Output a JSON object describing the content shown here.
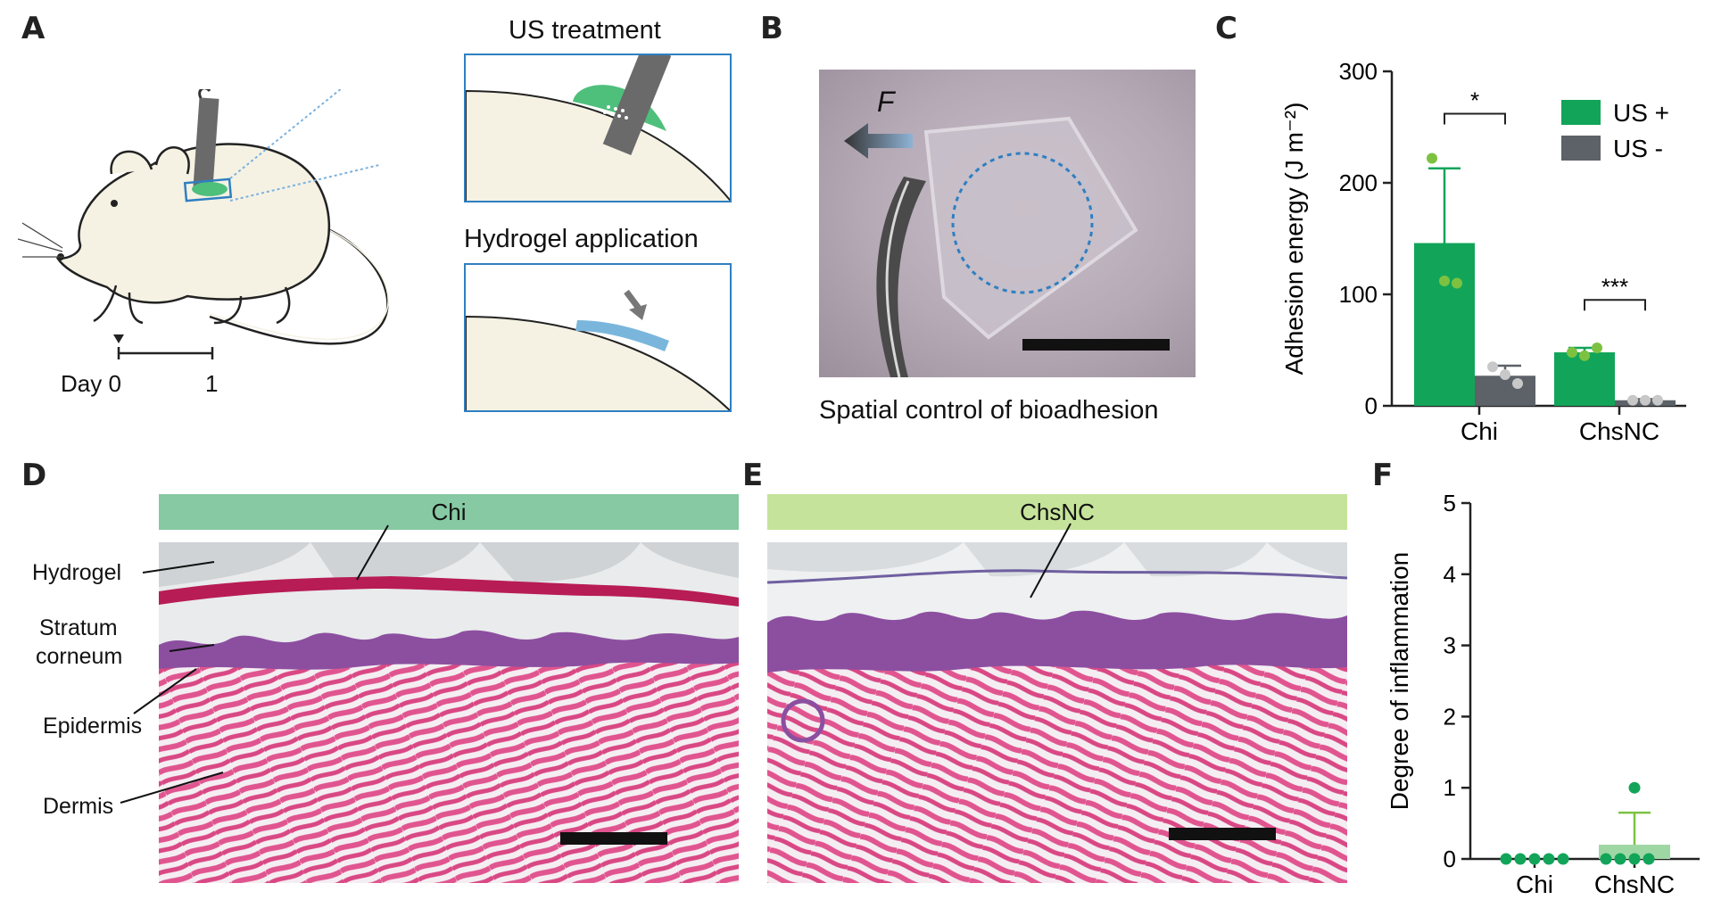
{
  "panels": {
    "A": {
      "letter": "A",
      "us_treatment": "US treatment",
      "hydrogel_application": "Hydrogel application",
      "timeline": {
        "day_label": "Day 0",
        "end_label": "1"
      }
    },
    "B": {
      "letter": "B",
      "force_label": "F",
      "caption": "Spatial control of bioadhesion"
    },
    "C": {
      "letter": "C"
    },
    "D": {
      "letter": "D",
      "band_label": "Chi",
      "layer_labels": {
        "hydrogel": "Hydrogel",
        "stratum": "Stratum",
        "corneum": "corneum",
        "epidermis": "Epidermis",
        "dermis": "Dermis"
      }
    },
    "E": {
      "letter": "E",
      "band_label": "ChsNC"
    },
    "F": {
      "letter": "F"
    }
  },
  "colors": {
    "green": "#12a55a",
    "dark_gray": "#5c6268",
    "light_green": "#9fd7a4",
    "inset_border": "#2f7fc1"
  },
  "chart_data": [
    {
      "id": "C",
      "type": "bar",
      "ylabel": "Adhesion energy (J m⁻²)",
      "ylim": [
        0,
        300
      ],
      "yticks": [
        0,
        100,
        200,
        300
      ],
      "categories": [
        "Chi",
        "ChsNC"
      ],
      "legend_position": "top-right",
      "series": [
        {
          "name": "US +",
          "color": "#12a55a",
          "values": [
            146,
            48
          ],
          "errors": [
            67,
            4
          ],
          "points": [
            [
              222,
              112,
              110
            ],
            [
              48,
              45,
              52
            ]
          ]
        },
        {
          "name": "US -",
          "color": "#5c6268",
          "values": [
            27,
            5
          ],
          "errors": [
            9,
            1
          ],
          "points": [
            [
              35,
              28,
              20
            ],
            [
              5,
              5,
              5
            ]
          ]
        }
      ],
      "significance": [
        "*",
        "***"
      ]
    },
    {
      "id": "F",
      "type": "scatter",
      "ylabel": "Degree of inflammation",
      "ylim": [
        0,
        5
      ],
      "yticks": [
        0,
        1,
        2,
        3,
        4,
        5
      ],
      "categories": [
        "Chi",
        "ChsNC"
      ],
      "means": [
        0,
        0.2
      ],
      "errors": [
        0,
        0.45
      ],
      "points": [
        [
          0,
          0,
          0,
          0,
          0
        ],
        [
          0,
          0,
          0,
          0,
          1
        ]
      ],
      "color": "#12a55a",
      "bar_color": "#9fd7a4"
    }
  ]
}
